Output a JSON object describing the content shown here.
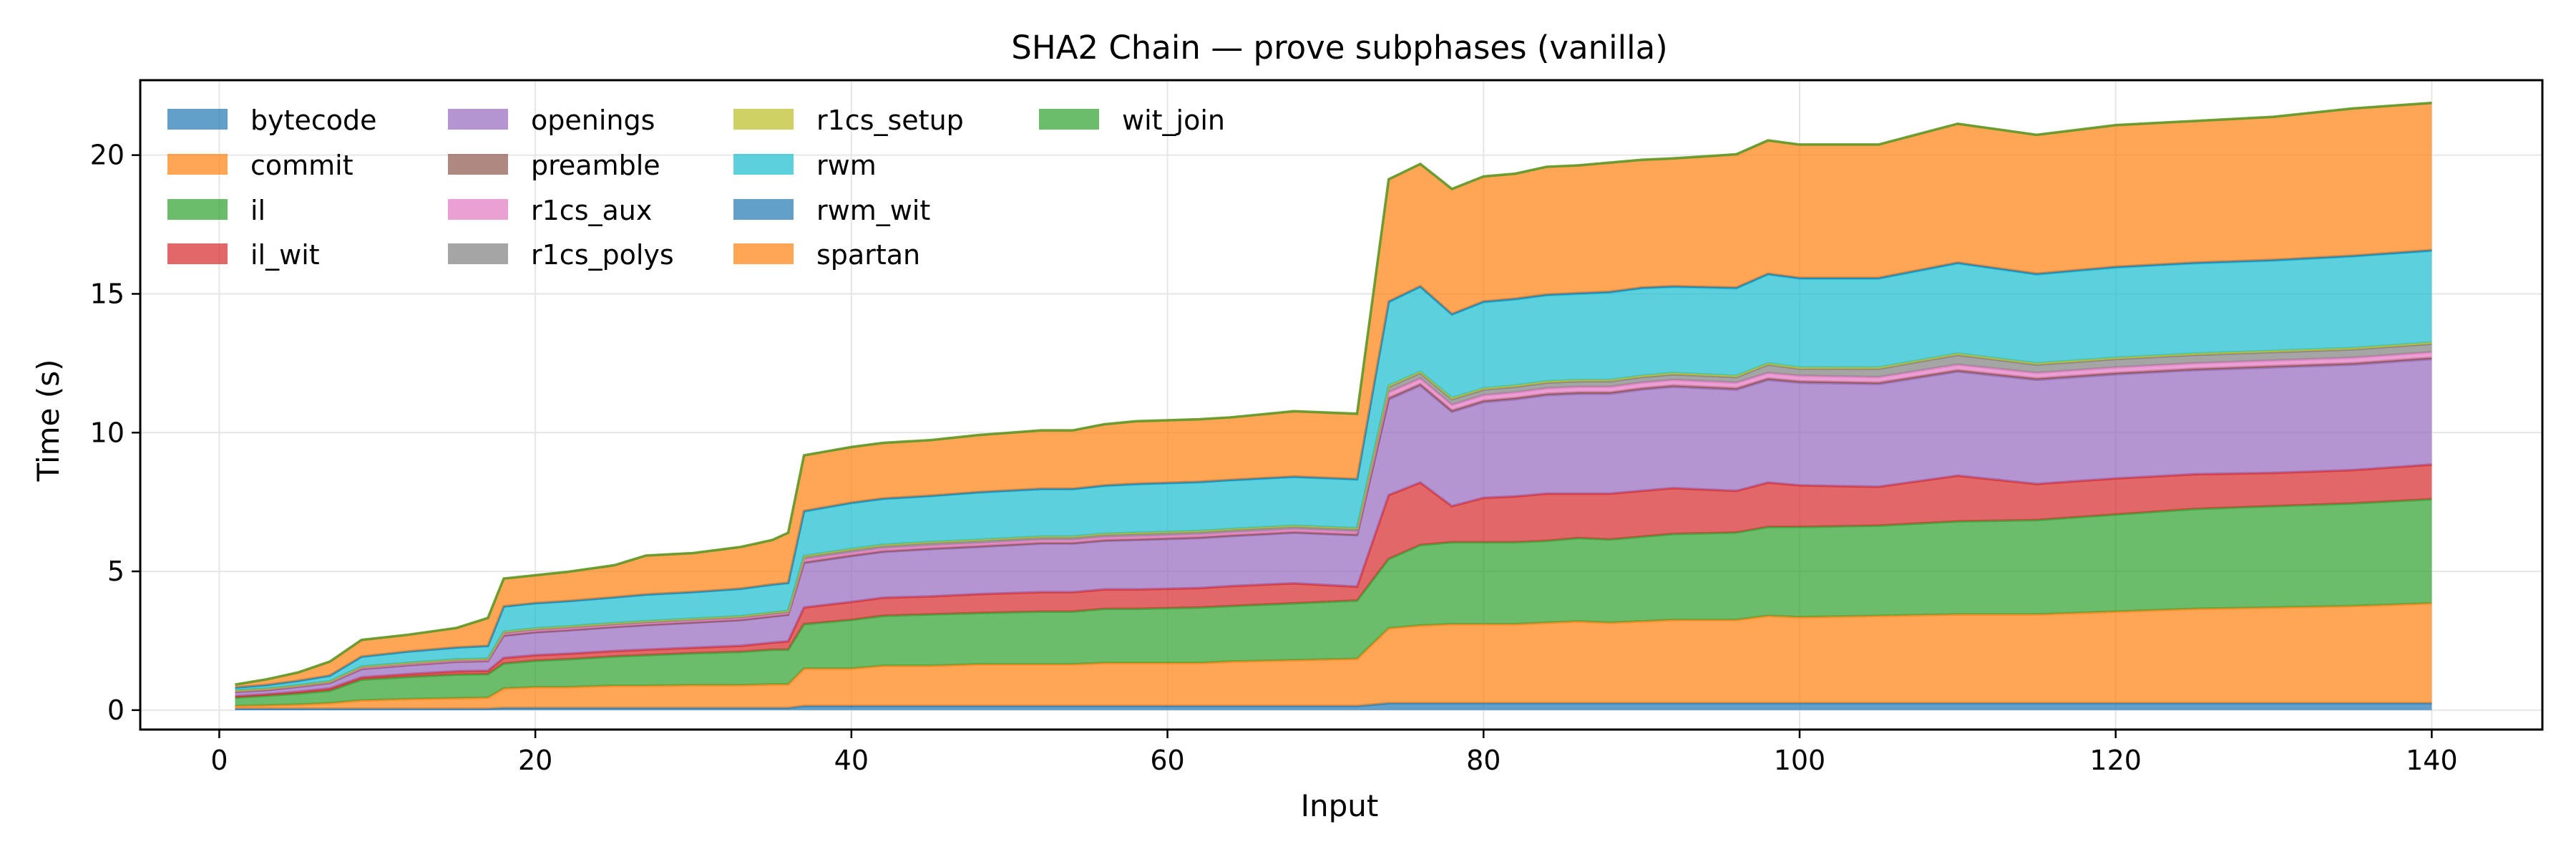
{
  "chart_data": {
    "type": "area",
    "stacked": true,
    "title": "SHA2 Chain — prove subphases (vanilla)",
    "xlabel": "Input",
    "ylabel": "Time (s)",
    "xlim": [
      -5,
      147
    ],
    "ylim": [
      -0.7,
      22.7
    ],
    "xticks": [
      0,
      20,
      40,
      60,
      80,
      100,
      120,
      140
    ],
    "yticks": [
      0,
      5,
      10,
      15,
      20
    ],
    "grid": true,
    "legend_position": "top-left",
    "legend_columns": 4,
    "x": [
      1,
      3,
      5,
      7,
      9,
      12,
      15,
      17,
      18,
      20,
      22,
      25,
      27,
      30,
      33,
      35,
      36,
      37,
      40,
      42,
      45,
      48,
      52,
      54,
      56,
      58,
      62,
      64,
      68,
      72,
      74,
      76,
      78,
      80,
      82,
      84,
      86,
      88,
      90,
      92,
      96,
      98,
      100,
      105,
      110,
      115,
      120,
      125,
      130,
      135,
      140
    ],
    "series": [
      {
        "name": "bytecode",
        "color": "#1f77b4",
        "values": [
          0.05,
          0.05,
          0.05,
          0.05,
          0.05,
          0.05,
          0.05,
          0.05,
          0.08,
          0.08,
          0.08,
          0.08,
          0.08,
          0.08,
          0.08,
          0.08,
          0.08,
          0.15,
          0.15,
          0.15,
          0.15,
          0.15,
          0.15,
          0.15,
          0.15,
          0.15,
          0.15,
          0.15,
          0.15,
          0.15,
          0.25,
          0.25,
          0.25,
          0.25,
          0.25,
          0.25,
          0.25,
          0.25,
          0.25,
          0.25,
          0.25,
          0.25,
          0.25,
          0.25,
          0.25,
          0.25,
          0.25,
          0.25,
          0.25,
          0.25,
          0.25
        ]
      },
      {
        "name": "commit",
        "color": "#ff7f0e",
        "values": [
          0.1,
          0.12,
          0.15,
          0.2,
          0.3,
          0.35,
          0.38,
          0.4,
          0.7,
          0.75,
          0.75,
          0.8,
          0.8,
          0.82,
          0.82,
          0.85,
          0.85,
          1.35,
          1.35,
          1.45,
          1.45,
          1.5,
          1.5,
          1.5,
          1.55,
          1.55,
          1.55,
          1.6,
          1.65,
          1.7,
          2.7,
          2.8,
          2.85,
          2.85,
          2.85,
          2.9,
          2.95,
          2.9,
          2.95,
          3.0,
          3.0,
          3.15,
          3.1,
          3.15,
          3.2,
          3.2,
          3.3,
          3.4,
          3.45,
          3.5,
          3.6
        ]
      },
      {
        "name": "il",
        "color": "#2ca02c",
        "values": [
          0.3,
          0.35,
          0.4,
          0.45,
          0.75,
          0.8,
          0.85,
          0.85,
          0.9,
          0.95,
          1.0,
          1.05,
          1.1,
          1.15,
          1.2,
          1.25,
          1.25,
          1.6,
          1.75,
          1.8,
          1.85,
          1.85,
          1.9,
          1.9,
          1.95,
          1.95,
          2.0,
          2.0,
          2.05,
          2.1,
          2.5,
          2.9,
          2.95,
          2.95,
          2.95,
          2.95,
          3.0,
          3.0,
          3.05,
          3.1,
          3.15,
          3.2,
          3.25,
          3.25,
          3.35,
          3.4,
          3.5,
          3.6,
          3.65,
          3.7,
          3.75
        ]
      },
      {
        "name": "il_wit",
        "color": "#d62728",
        "values": [
          0.05,
          0.05,
          0.06,
          0.08,
          0.08,
          0.1,
          0.12,
          0.12,
          0.2,
          0.2,
          0.2,
          0.2,
          0.2,
          0.2,
          0.22,
          0.25,
          0.3,
          0.6,
          0.65,
          0.65,
          0.65,
          0.68,
          0.7,
          0.7,
          0.7,
          0.7,
          0.7,
          0.72,
          0.72,
          0.5,
          2.3,
          2.25,
          1.3,
          1.6,
          1.65,
          1.7,
          1.6,
          1.65,
          1.65,
          1.65,
          1.5,
          1.6,
          1.5,
          1.4,
          1.65,
          1.3,
          1.3,
          1.25,
          1.2,
          1.2,
          1.25
        ]
      },
      {
        "name": "openings",
        "color": "#9467bd",
        "values": [
          0.15,
          0.15,
          0.18,
          0.2,
          0.3,
          0.32,
          0.34,
          0.35,
          0.8,
          0.82,
          0.84,
          0.86,
          0.88,
          0.9,
          0.92,
          0.94,
          0.95,
          1.6,
          1.65,
          1.65,
          1.7,
          1.7,
          1.75,
          1.75,
          1.75,
          1.78,
          1.8,
          1.8,
          1.82,
          1.85,
          3.45,
          3.5,
          3.4,
          3.45,
          3.5,
          3.55,
          3.6,
          3.6,
          3.65,
          3.65,
          3.65,
          3.7,
          3.7,
          3.7,
          3.75,
          3.75,
          3.75,
          3.75,
          3.8,
          3.8,
          3.8
        ]
      },
      {
        "name": "preamble",
        "color": "#8c564b",
        "values": [
          0.01,
          0.01,
          0.01,
          0.01,
          0.01,
          0.01,
          0.01,
          0.01,
          0.02,
          0.02,
          0.02,
          0.02,
          0.02,
          0.02,
          0.02,
          0.02,
          0.02,
          0.03,
          0.03,
          0.03,
          0.03,
          0.03,
          0.03,
          0.03,
          0.03,
          0.03,
          0.03,
          0.03,
          0.03,
          0.03,
          0.05,
          0.05,
          0.05,
          0.05,
          0.05,
          0.05,
          0.05,
          0.05,
          0.05,
          0.05,
          0.05,
          0.05,
          0.05,
          0.05,
          0.05,
          0.05,
          0.05,
          0.05,
          0.05,
          0.05,
          0.05
        ]
      },
      {
        "name": "r1cs_aux",
        "color": "#e377c2",
        "values": [
          0.02,
          0.02,
          0.02,
          0.02,
          0.03,
          0.03,
          0.03,
          0.03,
          0.05,
          0.05,
          0.05,
          0.05,
          0.05,
          0.05,
          0.05,
          0.05,
          0.05,
          0.1,
          0.1,
          0.1,
          0.1,
          0.1,
          0.1,
          0.1,
          0.1,
          0.1,
          0.1,
          0.1,
          0.1,
          0.1,
          0.2,
          0.2,
          0.2,
          0.2,
          0.2,
          0.2,
          0.2,
          0.2,
          0.2,
          0.2,
          0.2,
          0.2,
          0.2,
          0.2,
          0.2,
          0.2,
          0.2,
          0.2,
          0.2,
          0.2,
          0.2
        ]
      },
      {
        "name": "r1cs_polys",
        "color": "#7f7f7f",
        "values": [
          0.02,
          0.02,
          0.02,
          0.02,
          0.04,
          0.04,
          0.04,
          0.04,
          0.06,
          0.06,
          0.06,
          0.06,
          0.06,
          0.06,
          0.06,
          0.06,
          0.06,
          0.1,
          0.1,
          0.1,
          0.1,
          0.1,
          0.1,
          0.1,
          0.1,
          0.1,
          0.1,
          0.1,
          0.1,
          0.1,
          0.2,
          0.2,
          0.2,
          0.2,
          0.2,
          0.2,
          0.2,
          0.2,
          0.2,
          0.2,
          0.2,
          0.3,
          0.25,
          0.3,
          0.35,
          0.3,
          0.3,
          0.3,
          0.3,
          0.3,
          0.3
        ]
      },
      {
        "name": "r1cs_setup",
        "color": "#bcbd22",
        "values": [
          0.01,
          0.01,
          0.01,
          0.01,
          0.01,
          0.01,
          0.01,
          0.01,
          0.02,
          0.02,
          0.02,
          0.02,
          0.02,
          0.02,
          0.02,
          0.02,
          0.02,
          0.03,
          0.03,
          0.03,
          0.03,
          0.03,
          0.03,
          0.03,
          0.03,
          0.03,
          0.03,
          0.03,
          0.03,
          0.03,
          0.05,
          0.05,
          0.05,
          0.05,
          0.05,
          0.05,
          0.05,
          0.05,
          0.05,
          0.05,
          0.05,
          0.05,
          0.05,
          0.05,
          0.05,
          0.05,
          0.05,
          0.05,
          0.05,
          0.05,
          0.05
        ]
      },
      {
        "name": "rwm",
        "color": "#17becf",
        "values": [
          0.1,
          0.12,
          0.15,
          0.2,
          0.35,
          0.4,
          0.42,
          0.45,
          0.9,
          0.9,
          0.9,
          0.92,
          0.95,
          0.95,
          0.98,
          1.0,
          1.0,
          1.6,
          1.65,
          1.65,
          1.65,
          1.7,
          1.7,
          1.7,
          1.72,
          1.75,
          1.75,
          1.75,
          1.75,
          1.75,
          3.0,
          3.05,
          3.0,
          3.1,
          3.1,
          3.1,
          3.1,
          3.15,
          3.15,
          3.1,
          3.15,
          3.2,
          3.2,
          3.2,
          3.25,
          3.2,
          3.25,
          3.25,
          3.25,
          3.3,
          3.3
        ]
      },
      {
        "name": "rwm_wit",
        "color": "#1f77b4",
        "values": [
          0.01,
          0.01,
          0.01,
          0.01,
          0.01,
          0.01,
          0.01,
          0.01,
          0.01,
          0.01,
          0.01,
          0.01,
          0.01,
          0.01,
          0.01,
          0.01,
          0.01,
          0.02,
          0.02,
          0.02,
          0.02,
          0.02,
          0.02,
          0.02,
          0.02,
          0.02,
          0.02,
          0.02,
          0.02,
          0.02,
          0.03,
          0.03,
          0.03,
          0.03,
          0.03,
          0.03,
          0.03,
          0.03,
          0.03,
          0.03,
          0.03,
          0.03,
          0.03,
          0.03,
          0.03,
          0.03,
          0.03,
          0.03,
          0.03,
          0.03,
          0.03
        ]
      },
      {
        "name": "spartan",
        "color": "#ff7f0e",
        "values": [
          0.1,
          0.2,
          0.3,
          0.5,
          0.6,
          0.6,
          0.7,
          1.0,
          1.0,
          1.0,
          1.05,
          1.15,
          1.4,
          1.4,
          1.5,
          1.6,
          1.8,
          2.0,
          2.0,
          2.0,
          2.0,
          2.05,
          2.1,
          2.1,
          2.2,
          2.25,
          2.25,
          2.25,
          2.35,
          2.35,
          4.4,
          4.4,
          4.5,
          4.5,
          4.5,
          4.6,
          4.6,
          4.65,
          4.6,
          4.6,
          4.8,
          4.8,
          4.8,
          4.8,
          5.0,
          5.0,
          5.1,
          5.1,
          5.15,
          5.3,
          5.3
        ]
      },
      {
        "name": "wit_join",
        "color": "#2ca02c",
        "values": [
          0.0,
          0.0,
          0.0,
          0.0,
          0.0,
          0.0,
          0.0,
          0.0,
          0.0,
          0.0,
          0.0,
          0.0,
          0.0,
          0.0,
          0.0,
          0.0,
          0.0,
          0.0,
          0.0,
          0.0,
          0.0,
          0.0,
          0.0,
          0.0,
          0.0,
          0.0,
          0.0,
          0.0,
          0.0,
          0.0,
          0.0,
          0.0,
          0.0,
          0.0,
          0.0,
          0.0,
          0.0,
          0.0,
          0.0,
          0.0,
          0.0,
          0.0,
          0.0,
          0.0,
          0.0,
          0.0,
          0.0,
          0.0,
          0.0,
          0.0,
          0.0
        ]
      }
    ]
  }
}
